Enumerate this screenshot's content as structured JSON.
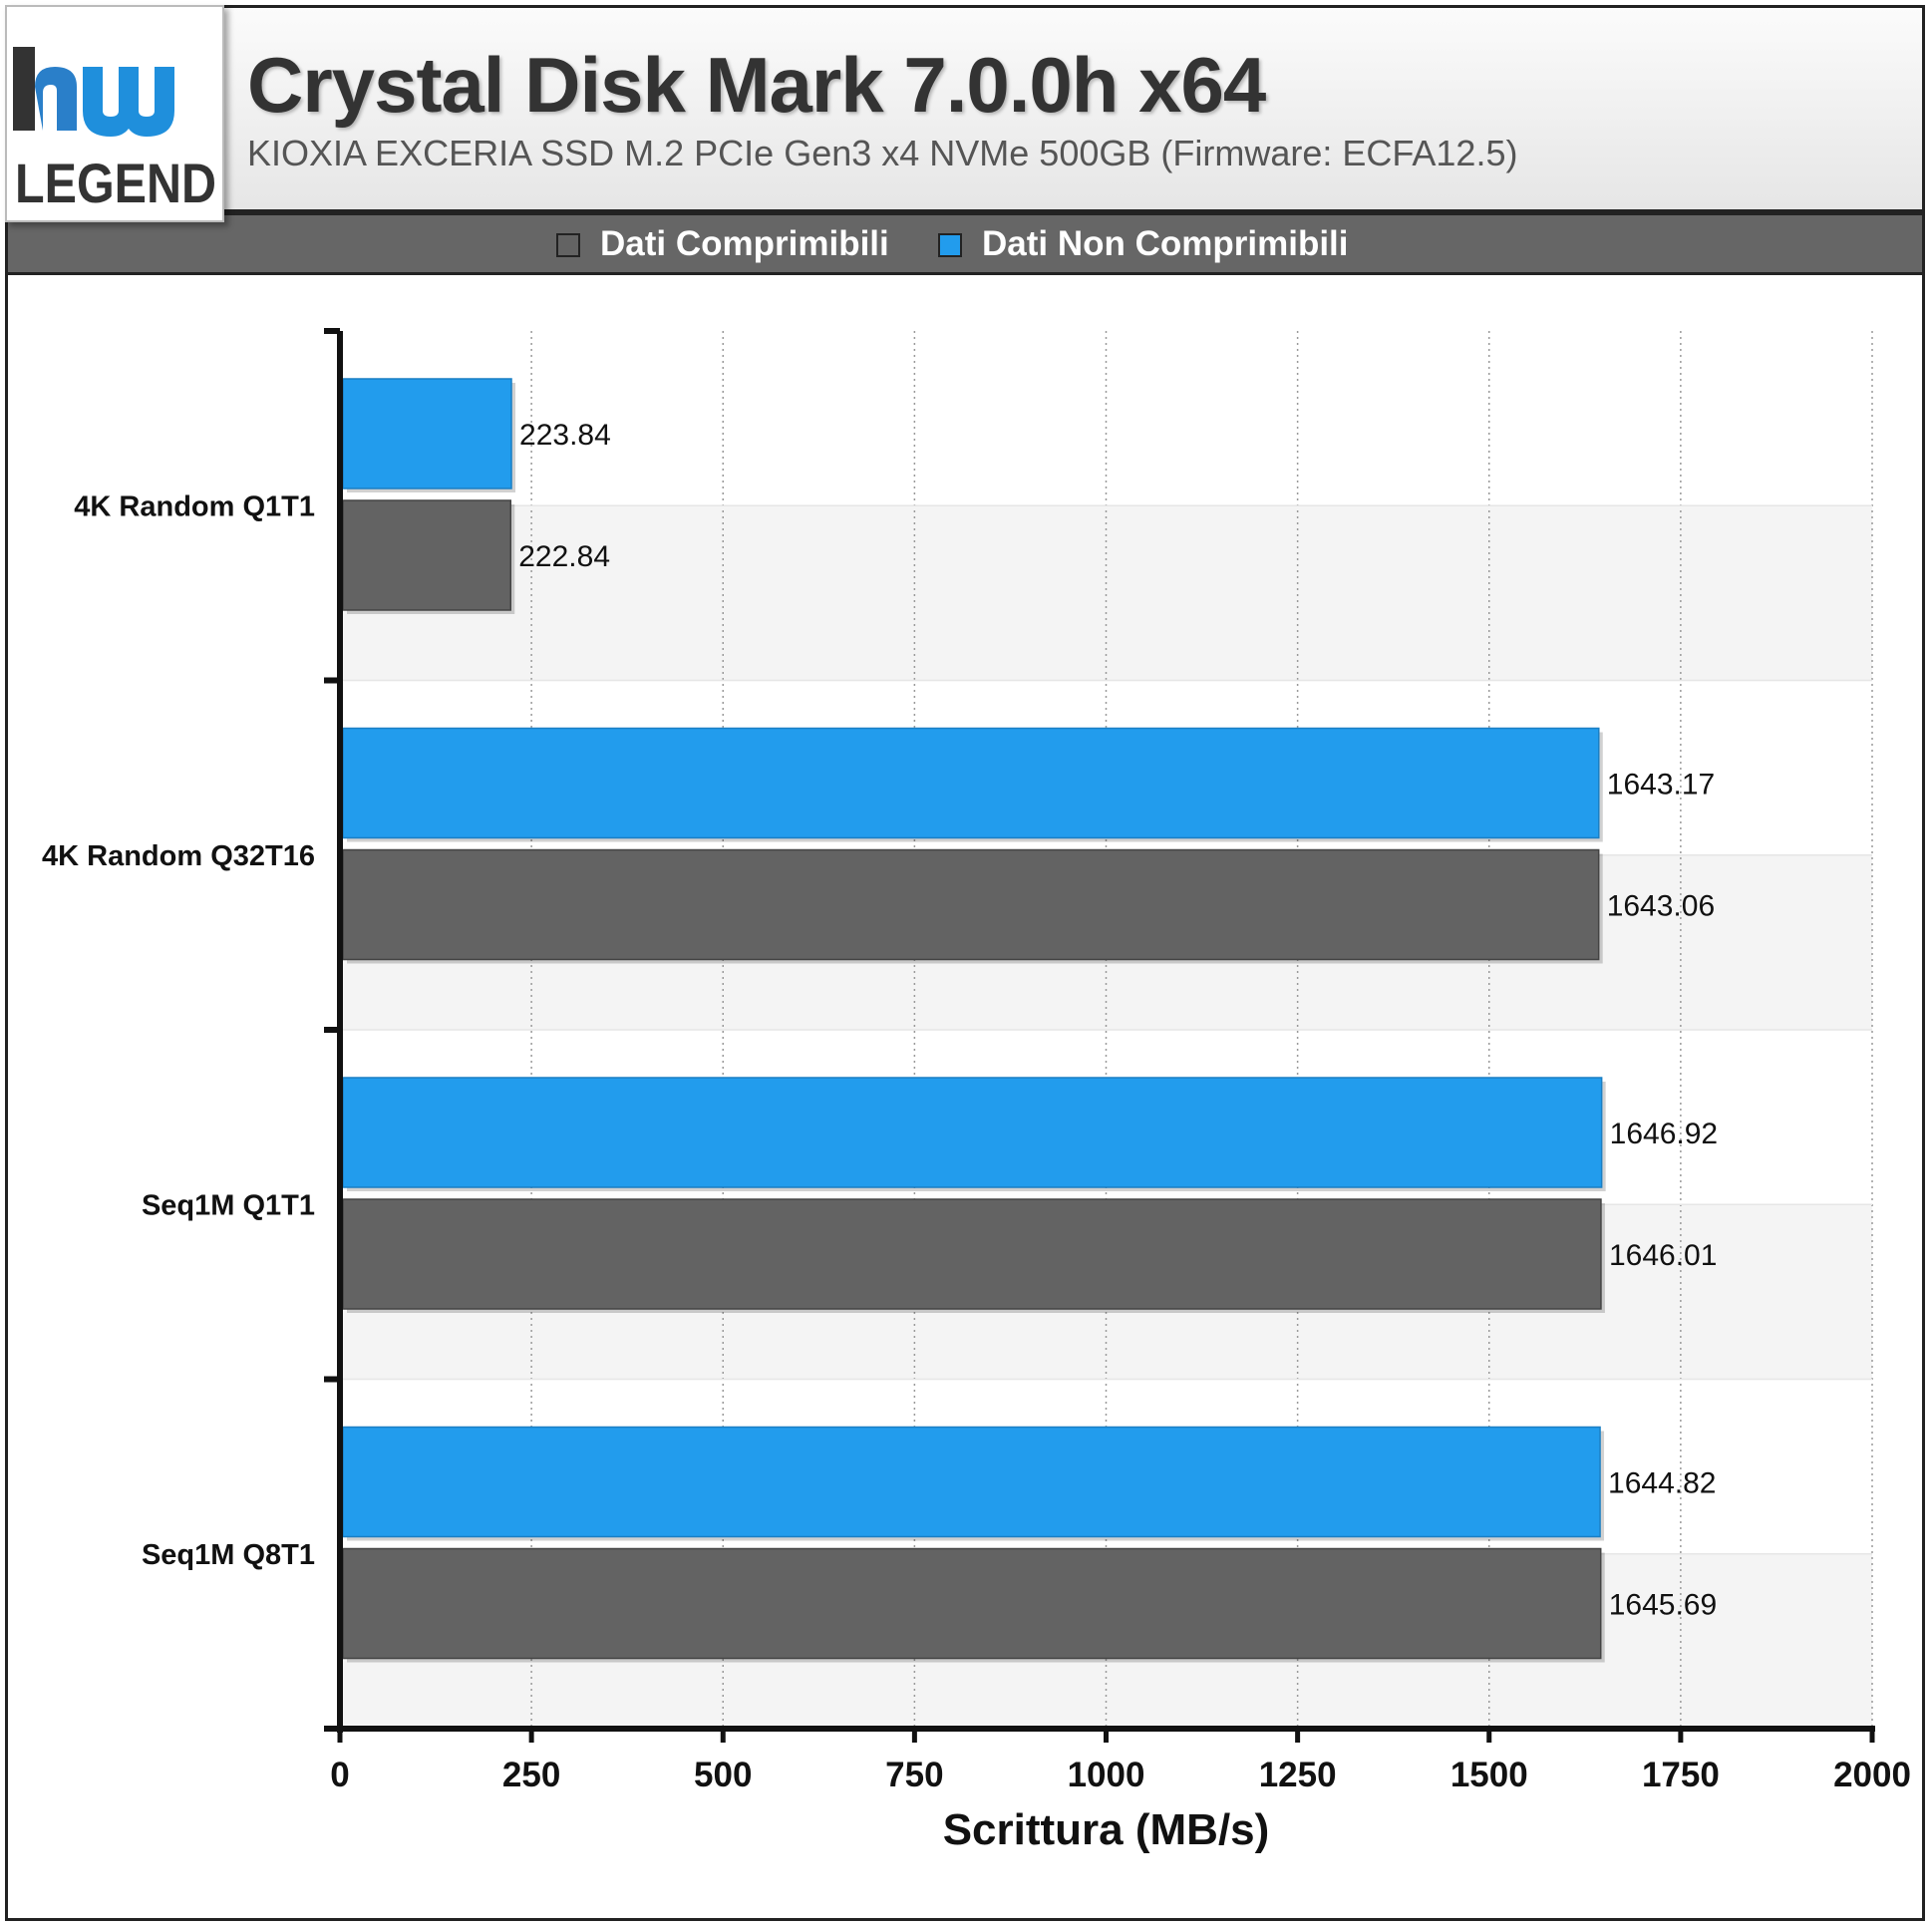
{
  "header": {
    "logo_text": "LEGEND",
    "title": "Crystal Disk Mark 7.0.0h x64",
    "subtitle": "KIOXIA EXCERIA SSD M.2 PCIe Gen3 x4 NVMe 500GB (Firmware: ECFA12.5)"
  },
  "legend": {
    "items": [
      {
        "label": "Dati Comprimibili",
        "color": "#636363"
      },
      {
        "label": "Dati Non Comprimibili",
        "color": "#229ced"
      }
    ],
    "placement": "top"
  },
  "chart_data": {
    "type": "bar",
    "orientation": "horizontal",
    "title": "Crystal Disk Mark 7.0.0h x64",
    "subtitle": "KIOXIA EXCERIA SSD M.2 PCIe Gen3 x4 NVMe 500GB (Firmware: ECFA12.5)",
    "xlabel": "Scrittura (MB/s)",
    "ylabel": "",
    "categories": [
      "4K Random Q1T1",
      "4K Random Q32T16",
      "Seq1M Q1T1",
      "Seq1M Q8T1"
    ],
    "series": [
      {
        "name": "Dati Non Comprimibili",
        "color": "#229ced",
        "values": [
          223.84,
          1643.17,
          1646.92,
          1644.82
        ]
      },
      {
        "name": "Dati Comprimibili",
        "color": "#636363",
        "values": [
          222.84,
          1643.06,
          1646.01,
          1645.69
        ]
      }
    ],
    "value_labels": [
      [
        "223.84",
        "1643.17",
        "1646.92",
        "1644.82"
      ],
      [
        "222.84",
        "1643.06",
        "1646.01",
        "1645.69"
      ]
    ],
    "xlim": [
      0,
      2000
    ],
    "xticks": [
      "0",
      "250",
      "500",
      "750",
      "1000",
      "1250",
      "1500",
      "1750",
      "2000"
    ],
    "grid": "vertical dotted",
    "legend_position": "top"
  }
}
